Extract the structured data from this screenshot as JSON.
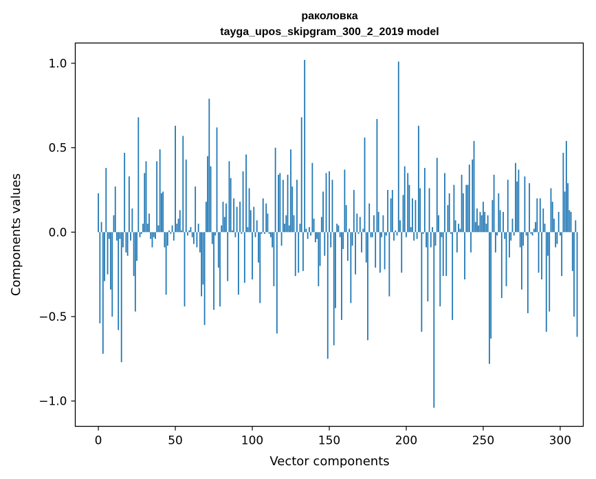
{
  "chart_data": {
    "type": "bar",
    "title": "раколовка",
    "subtitle": "tayga_upos_skipgram_300_2_2019 model",
    "xlabel": "Vector components",
    "ylabel": "Components values",
    "xlim": [
      -15,
      315
    ],
    "ylim": [
      -1.15,
      1.12
    ],
    "xticks": [
      0,
      50,
      100,
      150,
      200,
      250,
      300
    ],
    "xtick_labels": [
      "0",
      "50",
      "100",
      "150",
      "200",
      "250",
      "300"
    ],
    "yticks": [
      -1.0,
      -0.5,
      0.0,
      0.5,
      1.0
    ],
    "ytick_labels": [
      "−1.0",
      "−0.5",
      "0.0",
      "0.5",
      "1.0"
    ],
    "grid": false,
    "bar_color": "#1f77b4",
    "values": [
      0.23,
      -0.54,
      0.06,
      -0.72,
      -0.29,
      0.38,
      -0.25,
      -0.04,
      -0.34,
      -0.5,
      0.1,
      0.27,
      -0.05,
      -0.58,
      -0.04,
      -0.77,
      -0.09,
      0.47,
      -0.12,
      -0.14,
      0.33,
      -0.05,
      0.14,
      -0.26,
      -0.47,
      -0.17,
      0.68,
      -0.03,
      -0.01,
      0.05,
      0.35,
      0.42,
      0.05,
      0.11,
      -0.04,
      -0.09,
      -0.03,
      -0.04,
      0.42,
      0.04,
      0.49,
      0.23,
      0.24,
      -0.09,
      -0.37,
      -0.08,
      0.01,
      -0.01,
      0.04,
      -0.05,
      0.63,
      0.05,
      0.08,
      0.13,
      0.01,
      0.57,
      -0.44,
      0.43,
      -0.02,
      0.01,
      0.03,
      -0.03,
      -0.07,
      0.27,
      -0.09,
      0.05,
      -0.12,
      -0.38,
      -0.31,
      -0.55,
      0.18,
      0.45,
      0.79,
      0.39,
      -0.07,
      -0.46,
      -0.02,
      0.62,
      -0.21,
      -0.44,
      0.04,
      0.18,
      0.09,
      0.17,
      -0.29,
      0.42,
      0.32,
      0.01,
      0.2,
      -0.03,
      0.15,
      -0.37,
      0.18,
      -0.01,
      0.36,
      -0.3,
      0.46,
      0.03,
      0.26,
      0.13,
      -0.28,
      0.15,
      -0.03,
      0.07,
      -0.18,
      -0.42,
      -0.01,
      0.2,
      -0.01,
      0.17,
      0.11,
      -0.01,
      -0.03,
      -0.09,
      -0.32,
      0.5,
      -0.6,
      0.34,
      0.35,
      -0.08,
      0.31,
      0.05,
      0.1,
      0.34,
      0.04,
      0.49,
      0.27,
      0.1,
      -0.26,
      0.31,
      -0.24,
      0.05,
      0.68,
      -0.23,
      1.02,
      0.02,
      -0.04,
      0.03,
      -0.02,
      0.41,
      0.08,
      -0.06,
      -0.04,
      -0.32,
      -0.2,
      0.09,
      0.24,
      -0.14,
      0.35,
      -0.75,
      0.36,
      -0.09,
      0.31,
      -0.67,
      -0.45,
      0.05,
      0.04,
      -0.03,
      -0.52,
      -0.1,
      0.37,
      0.16,
      -0.17,
      0.02,
      -0.42,
      -0.08,
      0.25,
      -0.25,
      0.11,
      -0.01,
      0.09,
      -0.12,
      0.02,
      0.56,
      -0.18,
      -0.64,
      0.17,
      -0.03,
      -0.03,
      0.1,
      -0.21,
      0.67,
      0.12,
      -0.24,
      -0.03,
      0.1,
      -0.22,
      -0.02,
      0.25,
      -0.38,
      0.2,
      0.25,
      -0.05,
      0.01,
      -0.02,
      1.01,
      0.07,
      -0.24,
      0.22,
      0.39,
      -0.03,
      0.35,
      0.28,
      0.03,
      0.2,
      -0.05,
      0.19,
      -0.04,
      0.63,
      0.26,
      -0.59,
      -0.01,
      0.38,
      -0.09,
      -0.41,
      0.26,
      -0.09,
      0.03,
      -1.04,
      -0.08,
      0.44,
      0.1,
      -0.44,
      -0.03,
      -0.26,
      0.35,
      -0.26,
      0.16,
      0.23,
      -0.01,
      -0.52,
      0.28,
      0.07,
      -0.12,
      0.05,
      0.02,
      0.34,
      0.23,
      -0.28,
      0.28,
      0.28,
      0.4,
      -0.12,
      0.43,
      0.54,
      0.06,
      0.14,
      0.04,
      0.12,
      0.1,
      0.18,
      0.12,
      0.05,
      0.1,
      -0.78,
      -0.63,
      0.19,
      0.34,
      -0.12,
      -0.02,
      0.23,
      0.13,
      -0.39,
      0.12,
      -0.04,
      -0.32,
      0.31,
      -0.15,
      -0.05,
      0.08,
      -0.02,
      0.41,
      0.3,
      0.37,
      -0.09,
      -0.34,
      -0.08,
      0.33,
      -0.02,
      -0.48,
      0.29,
      -0.01,
      -0.02,
      0.02,
      0.06,
      0.2,
      -0.24,
      0.2,
      -0.28,
      0.14,
      0.05,
      -0.59,
      -0.14,
      -0.47,
      0.26,
      0.18,
      0.08,
      -0.09,
      -0.07,
      0.12,
      -0.02,
      -0.26,
      0.47,
      0.24,
      0.54,
      0.29,
      0.13,
      0.12,
      -0.23,
      -0.5,
      0.07,
      -0.62
    ]
  }
}
